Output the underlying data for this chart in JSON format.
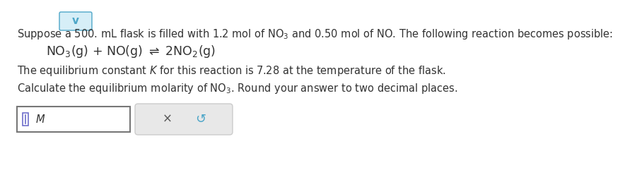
{
  "background_color": "#ffffff",
  "chevron_color": "#4da6c8",
  "chevron_bg": "#d6eef7",
  "chevron_border": "#4da6c8",
  "text_color": "#333333",
  "gray_button_bg": "#e8e8e8",
  "gray_button_border": "#cccccc",
  "input_border": "#777777",
  "cursor_color": "#7070cc",
  "x_color": "#555555",
  "undo_color": "#4da6c8",
  "line1": "Suppose a 500. mL flask is filled with 1.2 mol of NO$_3$ and 0.50 mol of NO. The following reaction becomes possible:",
  "line2": "NO$_3$(g) + NO(g) $\\rightleftharpoons$ 2NO$_2$(g)",
  "line3": "The equilibrium constant $K$ for this reaction is 7.28 at the temperature of the flask.",
  "line4": "Calculate the equilibrium molarity of NO$_3$. Round your answer to two decimal places.",
  "input_label": "$M$",
  "font_size_main": 10.5,
  "font_size_eq": 12.5,
  "font_size_btn": 12
}
